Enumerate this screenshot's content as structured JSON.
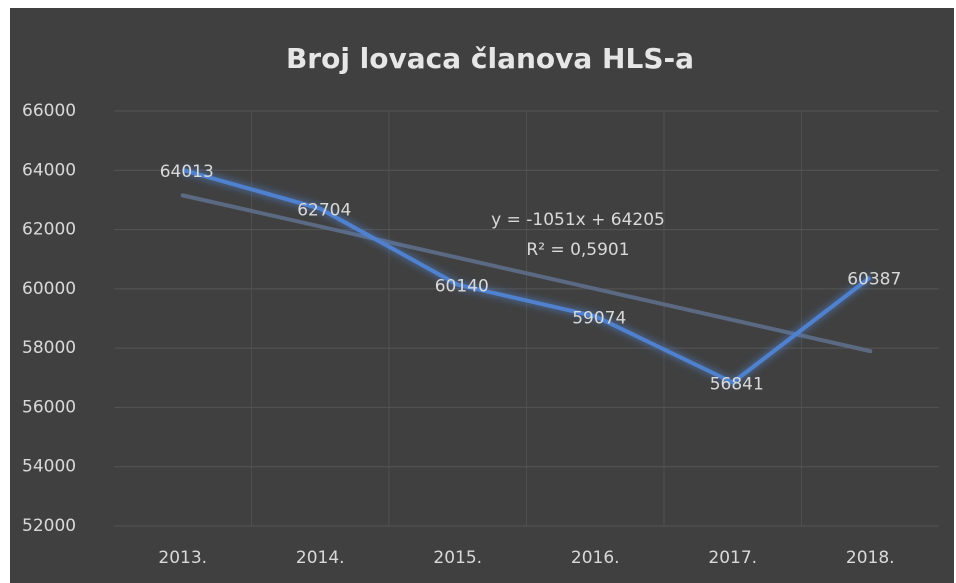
{
  "chart_data": {
    "type": "line",
    "title": "Broj lovaca članova HLS-a",
    "categories": [
      "2013.",
      "2014.",
      "2015.",
      "2016.",
      "2017.",
      "2018."
    ],
    "values": [
      64013,
      62704,
      60140,
      59074,
      56841,
      60387
    ],
    "color": "#4f81cf",
    "ylim": [
      52000,
      66000
    ],
    "yticks": [
      52000,
      54000,
      56000,
      58000,
      60000,
      62000,
      64000,
      66000
    ],
    "grid": true,
    "trendline": {
      "label": "y = -1051x + 64205",
      "r2_label": "R² = 0,5901",
      "slope": -1051,
      "intercept": 64205,
      "color": "#5b6a82"
    }
  }
}
